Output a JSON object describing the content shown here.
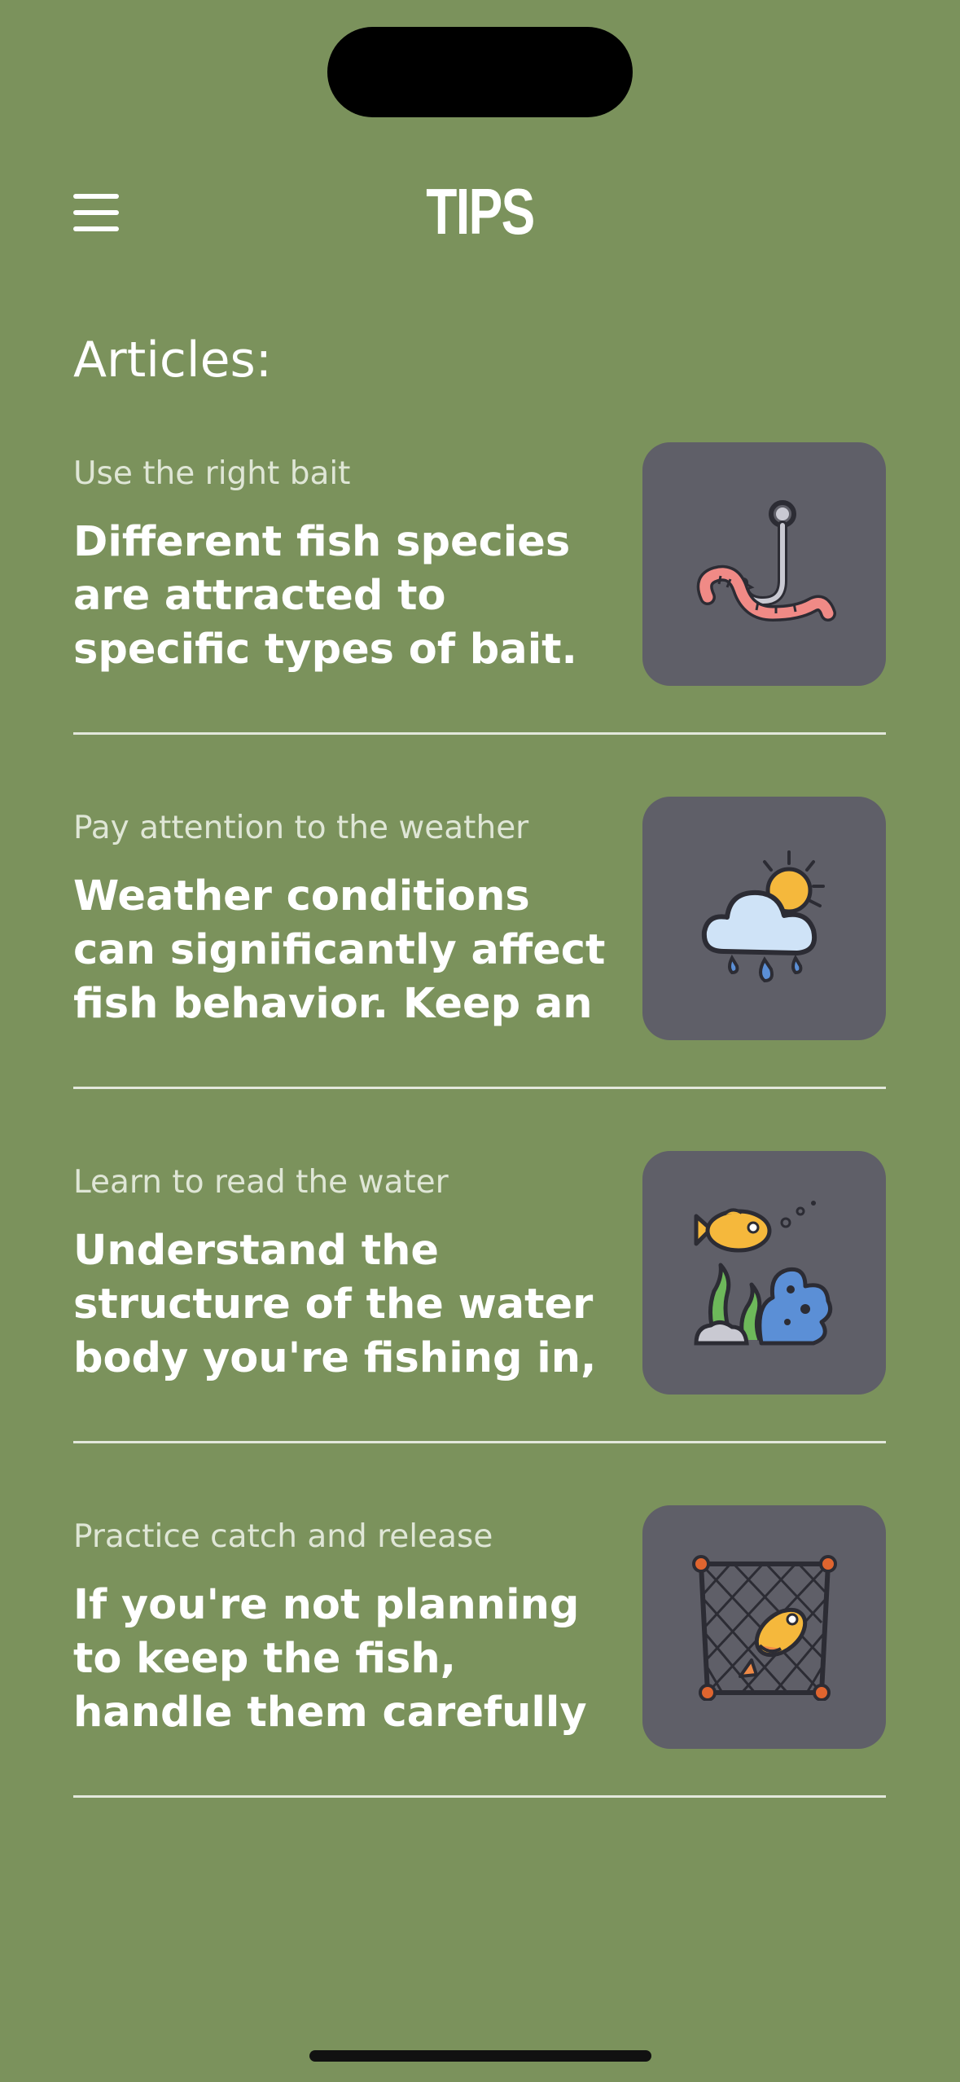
{
  "header": {
    "title": "TIPS",
    "menu_icon": "hamburger-menu-icon"
  },
  "section": {
    "heading": "Articles:"
  },
  "articles": [
    {
      "subtitle": "Use the right bait",
      "body": "Different fish species are attracted to specific types of bait. Research",
      "icon": "hook-worm-icon"
    },
    {
      "subtitle": "Pay attention to the weather",
      "body": "Weather conditions can significantly affect fish behavior. Keep an",
      "icon": "weather-cloud-sun-rain-icon"
    },
    {
      "subtitle": "Learn to read the water",
      "body": "Understand the structure of the water body you're fishing in,",
      "icon": "fish-underwater-icon"
    },
    {
      "subtitle": "Practice catch and release",
      "body": " If you're not planning to keep the fish, handle them carefully and",
      "icon": "fish-net-icon"
    }
  ],
  "colors": {
    "background": "#7b925c",
    "card": "#5f5f68",
    "text": "#ffffff",
    "subtitle": "#dfe6d6"
  }
}
